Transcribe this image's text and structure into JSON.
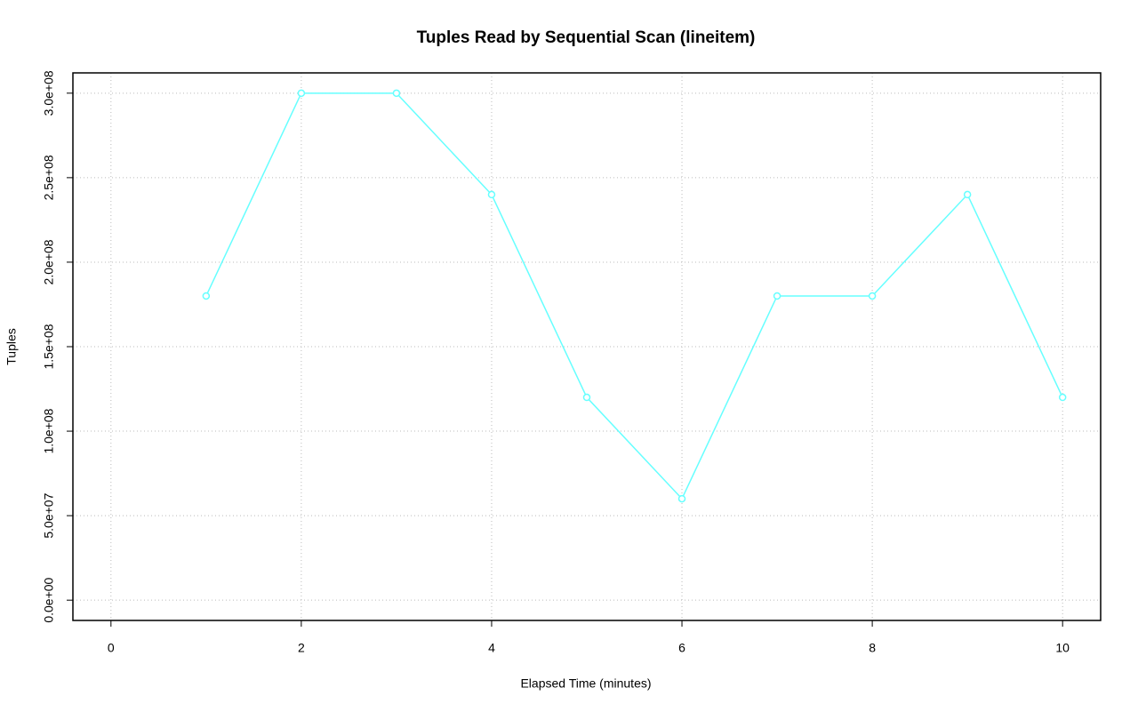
{
  "chart_data": {
    "type": "line",
    "title": "Tuples Read by Sequential Scan (lineitem)",
    "x_label": "Elapsed Time (minutes)",
    "y_label": "Tuples",
    "x": [
      1,
      2,
      3,
      4,
      5,
      6,
      7,
      8,
      9,
      10
    ],
    "series": [
      {
        "name": "lineitem",
        "color": "#66ffff",
        "values": [
          180000000,
          300000000,
          300000000,
          240000000,
          120000000,
          60000000,
          180000000,
          180000000,
          240000000,
          120000000
        ]
      }
    ],
    "xlim": [
      -0.4,
      10.4
    ],
    "ylim": [
      -12000000,
      312000000
    ],
    "xticks": [
      0,
      2,
      4,
      6,
      8,
      10
    ],
    "yticks": [
      {
        "value": 0,
        "label": "0.0e+00"
      },
      {
        "value": 50000000,
        "label": "5.0e+07"
      },
      {
        "value": 100000000,
        "label": "1.0e+08"
      },
      {
        "value": 150000000,
        "label": "1.5e+08"
      },
      {
        "value": 200000000,
        "label": "2.0e+08"
      },
      {
        "value": 250000000,
        "label": "2.5e+08"
      },
      {
        "value": 300000000,
        "label": "3.0e+08"
      }
    ],
    "grid": true
  }
}
